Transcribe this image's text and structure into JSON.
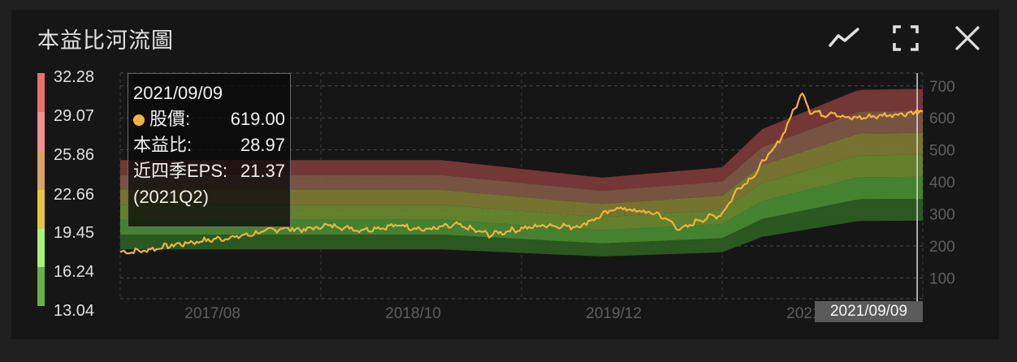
{
  "title": "本益比河流圖",
  "icons": [
    "trend-line-icon",
    "fullscreen-icon",
    "close-icon"
  ],
  "legend": {
    "labels": [
      "32.28",
      "29.07",
      "25.86",
      "22.66",
      "19.45",
      "16.24",
      "13.04"
    ],
    "colors": [
      "#e8716f",
      "#ef8f8b",
      "#dba264",
      "#e6c440",
      "#a6f271",
      "#6ab046"
    ]
  },
  "tooltip": {
    "date": "2021/09/09",
    "price_label": "股價:",
    "price_value": "619.00",
    "pe_label": "本益比:",
    "pe_value": "28.97",
    "eps_label": "近四季EPS:",
    "eps_value": "21.37",
    "quarter": "(2021Q2)"
  },
  "cursor_date": "2021/09/09",
  "chart_data": {
    "type": "area",
    "x_tick_labels": [
      "2017/08",
      "2018/10",
      "2019/12",
      "2021/02"
    ],
    "y_ticks": [
      100,
      200,
      300,
      400,
      500,
      600,
      700
    ],
    "ylim": [
      30,
      740
    ],
    "x_range": [
      "2016/08",
      "2021/09"
    ],
    "pe_multiples": [
      13.04,
      16.24,
      19.45,
      22.66,
      25.86,
      29.07,
      32.28
    ],
    "band_colors": [
      "#2c5e22",
      "#4a8c33",
      "#6a8a30",
      "#7f7c33",
      "#7f5a45",
      "#7c3b38"
    ],
    "price_color": "#f0b33c",
    "eps_series": {
      "t": [
        0,
        0.25,
        0.4,
        0.6,
        0.75,
        0.8,
        0.92,
        0.98,
        1.0
      ],
      "eps": [
        14.5,
        14.5,
        14.5,
        12.8,
        13.8,
        17.5,
        21.3,
        21.37,
        21.37
      ]
    },
    "price_series": {
      "t": [
        0,
        0.03,
        0.06,
        0.1,
        0.15,
        0.2,
        0.23,
        0.26,
        0.3,
        0.35,
        0.38,
        0.42,
        0.46,
        0.49,
        0.53,
        0.57,
        0.6,
        0.62,
        0.64,
        0.67,
        0.7,
        0.72,
        0.75,
        0.77,
        0.79,
        0.8,
        0.82,
        0.85,
        0.86,
        0.88,
        0.89,
        0.9,
        0.92,
        0.96,
        1.0
      ],
      "price": [
        180,
        185,
        200,
        215,
        230,
        255,
        250,
        265,
        250,
        265,
        250,
        265,
        235,
        250,
        265,
        260,
        295,
        320,
        310,
        300,
        250,
        280,
        300,
        380,
        420,
        460,
        520,
        680,
        620,
        610,
        620,
        600,
        600,
        610,
        619
      ]
    },
    "cursor": {
      "date": "2021/09/09",
      "price": 619.0,
      "pe": 28.97,
      "eps": 21.37
    }
  }
}
